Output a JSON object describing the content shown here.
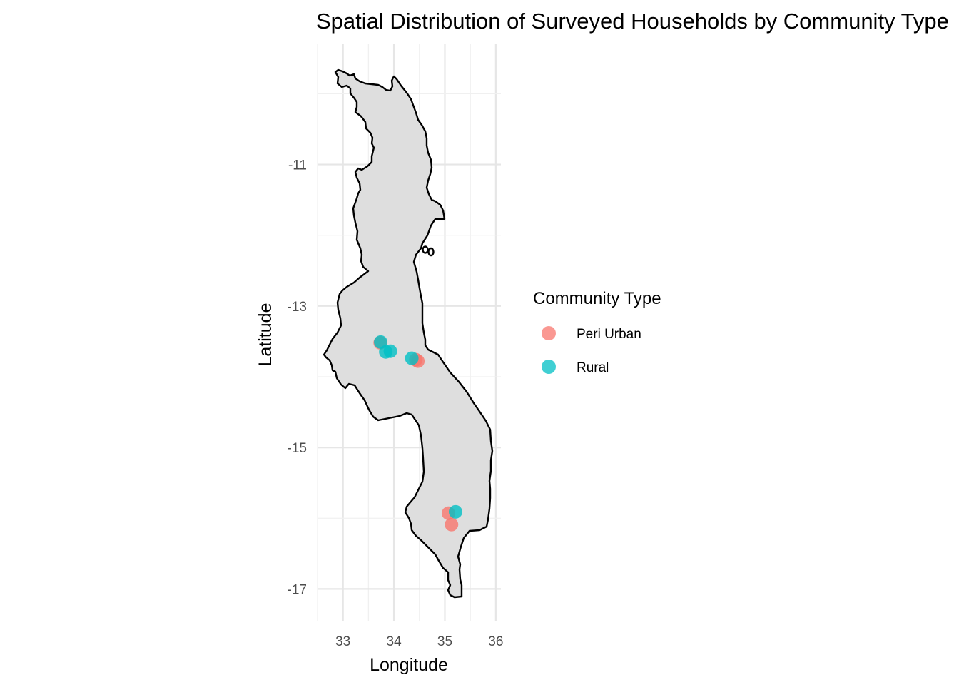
{
  "chart_data": {
    "type": "scatter",
    "title": "Spatial Distribution of Surveyed Households by Community Type",
    "xlabel": "Longitude",
    "ylabel": "Latitude",
    "xlim": [
      32.5,
      36.1
    ],
    "ylim": [
      -17.45,
      -9.3
    ],
    "x_ticks": [
      33,
      34,
      35,
      36
    ],
    "y_ticks": [
      -11,
      -13,
      -15,
      -17
    ],
    "x_tick_labels": [
      "33",
      "34",
      "35",
      "36"
    ],
    "y_tick_labels": [
      "-11",
      "-13",
      "-15",
      "-17"
    ],
    "grid": true,
    "legend_position": "right",
    "legend_title": "Community Type",
    "series": [
      {
        "name": "Peri Urban",
        "color": "#F8766D",
        "x": [
          33.73,
          34.43,
          34.47,
          35.07,
          35.13
        ],
        "y": [
          -13.52,
          -13.76,
          -13.78,
          -15.93,
          -16.09
        ]
      },
      {
        "name": "Rural",
        "color": "#00BFC4",
        "x": [
          33.74,
          33.84,
          33.93,
          34.35,
          35.21
        ],
        "y": [
          -13.51,
          -13.65,
          -13.64,
          -13.74,
          -15.91
        ]
      }
    ]
  }
}
